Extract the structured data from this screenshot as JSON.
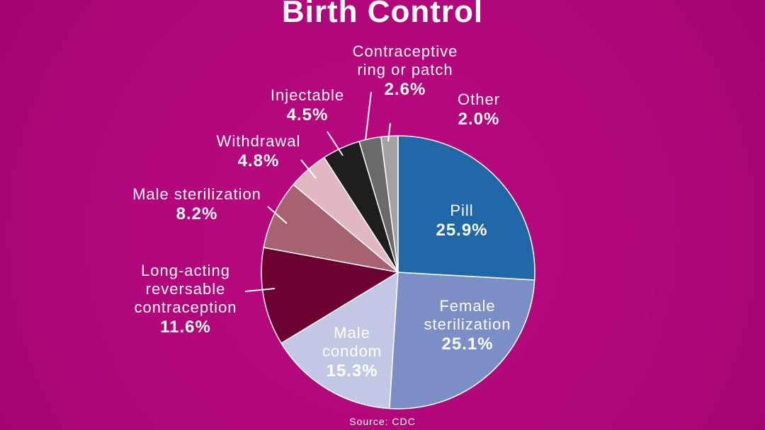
{
  "chart_data": {
    "type": "pie",
    "title": "Birth Control",
    "source": "Source: CDC",
    "categories": [
      "Pill",
      "Female sterilization",
      "Male condom",
      "Long-acting reversable contraception",
      "Male sterilization",
      "Withdrawal",
      "Injectable",
      "Contraceptive ring or patch",
      "Other"
    ],
    "values": [
      25.9,
      25.1,
      15.3,
      11.6,
      8.2,
      4.8,
      4.5,
      2.6,
      2.0
    ],
    "value_labels": [
      "25.9%",
      "25.1%",
      "15.3%",
      "11.6%",
      "8.2%",
      "4.8%",
      "4.5%",
      "2.6%",
      "2.0%"
    ],
    "colors": [
      "#1f67a6",
      "#7b8ec5",
      "#c2c8e4",
      "#6c0030",
      "#a8626f",
      "#e2b8c0",
      "#1e1e1e",
      "#6a6a6a",
      "#a2a2a2"
    ]
  }
}
